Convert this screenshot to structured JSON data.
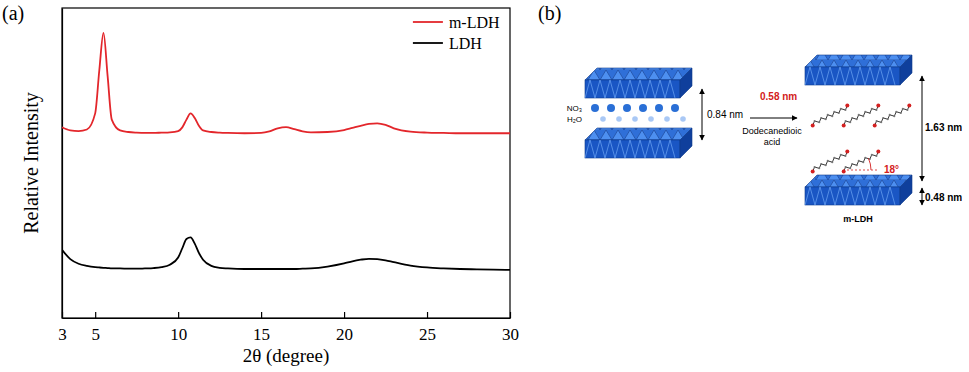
{
  "chart_data": {
    "type": "line",
    "panel_label": "(a)",
    "x_label": "2θ (degree)",
    "y_label": "Relative Intensity",
    "x": [
      3,
      3.5,
      4,
      4.5,
      5,
      5.25,
      5.5,
      5.75,
      6,
      6.5,
      7,
      7.5,
      8,
      8.5,
      9,
      9.5,
      10,
      10.25,
      10.5,
      10.75,
      11,
      11.25,
      11.5,
      12,
      12.5,
      13,
      14,
      15,
      15.5,
      16,
      16.5,
      17,
      17.5,
      18,
      19,
      20,
      20.5,
      21,
      21.5,
      22,
      22.5,
      23,
      24,
      25,
      26,
      27,
      28,
      29,
      30
    ],
    "series": [
      {
        "name": "m-LDH",
        "color": "#e3262b",
        "values": [
          61.5,
          60.5,
          60.3,
          60.8,
          66,
          80,
          92,
          78,
          64,
          60.5,
          60,
          59.8,
          59.7,
          59.7,
          59.8,
          59.9,
          60.3,
          61.5,
          64,
          66,
          64.5,
          62,
          60.5,
          60,
          59.8,
          59.7,
          59.6,
          59.7,
          60.2,
          61.2,
          61.6,
          60.9,
          60.2,
          59.9,
          60,
          60.6,
          61.3,
          62,
          62.6,
          62.8,
          62.3,
          61.2,
          60.1,
          59.8,
          59.7,
          59.6,
          59.6,
          59.6,
          59.6
        ]
      },
      {
        "name": "LDH",
        "color": "#000000",
        "values": [
          22,
          19,
          17.5,
          16.8,
          16.4,
          16.3,
          16.2,
          16.1,
          16,
          16,
          15.9,
          15.9,
          16,
          16.1,
          16.4,
          17.2,
          19.5,
          22.5,
          25.5,
          26,
          24,
          21,
          18.8,
          16.8,
          16.2,
          16,
          15.8,
          15.8,
          15.8,
          15.8,
          15.8,
          15.8,
          15.9,
          16,
          16.6,
          17.6,
          18.3,
          18.8,
          19.1,
          19,
          18.6,
          18,
          16.9,
          16.3,
          16,
          15.8,
          15.7,
          15.6,
          15.5
        ]
      }
    ],
    "xlim": [
      3,
      30
    ],
    "xticks": [
      3,
      5,
      10,
      15,
      20,
      25,
      30
    ],
    "ylim": [
      0,
      100
    ],
    "tick_labels": "x",
    "legend": "upper right"
  },
  "diagram": {
    "panel_label": "(b)",
    "interlayer_labels": [
      "NO₃",
      "H₂O"
    ],
    "spacing_before": "0.84 nm",
    "reagent": "Dodecanedioic acid",
    "chain_length": "0.58 nm",
    "spacing_after": "1.63 nm",
    "layer_thickness": "0.48 nm",
    "tilt_angle": "18°",
    "product": "m-LDH"
  }
}
